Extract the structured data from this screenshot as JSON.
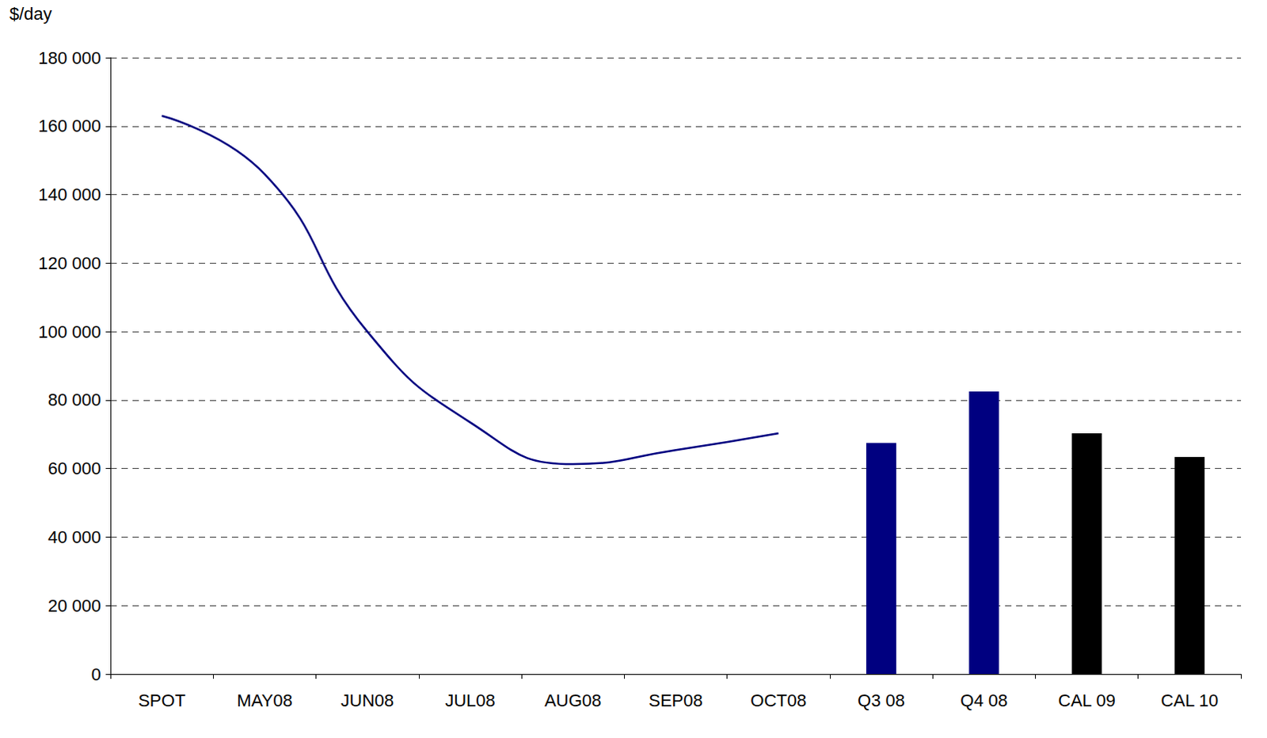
{
  "chart_data": {
    "type": "line",
    "y_label": "$/day",
    "categories": [
      "SPOT",
      "MAY08",
      "JUN08",
      "JUL08",
      "AUG08",
      "SEP08",
      "OCT08",
      "Q3 08",
      "Q4 08",
      "CAL 09",
      "CAL 10"
    ],
    "series": [
      {
        "type": "line",
        "color": "#000080",
        "line_style": "solid",
        "values": [
          163000,
          146000,
          100000,
          73500,
          61300,
          65400,
          70300,
          null,
          null,
          null,
          null
        ]
      },
      {
        "type": "bar",
        "colors": [
          null,
          null,
          null,
          null,
          null,
          null,
          null,
          "#000080",
          "#000080",
          "#000000",
          "#000000"
        ],
        "values": [
          null,
          null,
          null,
          null,
          null,
          null,
          null,
          67500,
          82500,
          70300,
          63400
        ]
      }
    ],
    "ylim": [
      0,
      180000
    ],
    "yticks": [
      {
        "value": 0,
        "label": "0"
      },
      {
        "value": 20000,
        "label": "20 000"
      },
      {
        "value": 40000,
        "label": "40 000"
      },
      {
        "value": 60000,
        "label": "60 000"
      },
      {
        "value": 80000,
        "label": "80 000"
      },
      {
        "value": 100000,
        "label": "100 000"
      },
      {
        "value": 120000,
        "label": "120 000"
      },
      {
        "value": 140000,
        "label": "140 000"
      },
      {
        "value": 160000,
        "label": "160 000"
      },
      {
        "value": 180000,
        "label": "180 000"
      }
    ],
    "grid": true
  }
}
